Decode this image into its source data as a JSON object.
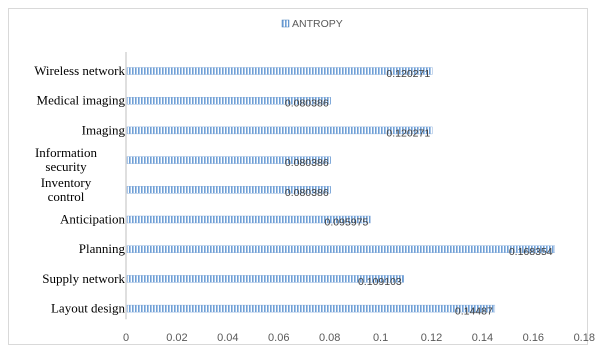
{
  "chart_data": {
    "type": "bar",
    "orientation": "horizontal",
    "categories": [
      "Wireless network",
      "Medical imaging",
      "Imaging",
      [
        "Information",
        "security"
      ],
      [
        "Inventory",
        "control"
      ],
      "Anticipation",
      "Planning",
      "Supply network",
      "Layout design"
    ],
    "series": [
      {
        "name": "ANTROPY",
        "values": [
          0.120271,
          0.080386,
          0.120271,
          0.080386,
          0.080386,
          0.095975,
          0.168354,
          0.109103,
          0.14487
        ],
        "data_labels": [
          "0.120271",
          "0.080386",
          "0.120271",
          "0.080386",
          "0.080386",
          "0.095975",
          "0.168354",
          "0.109103",
          "0.14487"
        ]
      }
    ],
    "x_ticks": [
      "0",
      "0.02",
      "0.04",
      "0.06",
      "0.08",
      "0.1",
      "0.12",
      "0.14",
      "0.16",
      "0.18"
    ],
    "xlim": [
      0,
      0.18
    ],
    "legend_position": "top",
    "grid": false,
    "colors": {
      "bar_fill": "#8db4e2",
      "bar_stripe": "#4f81bd",
      "axis": "#bfbfbf"
    }
  }
}
